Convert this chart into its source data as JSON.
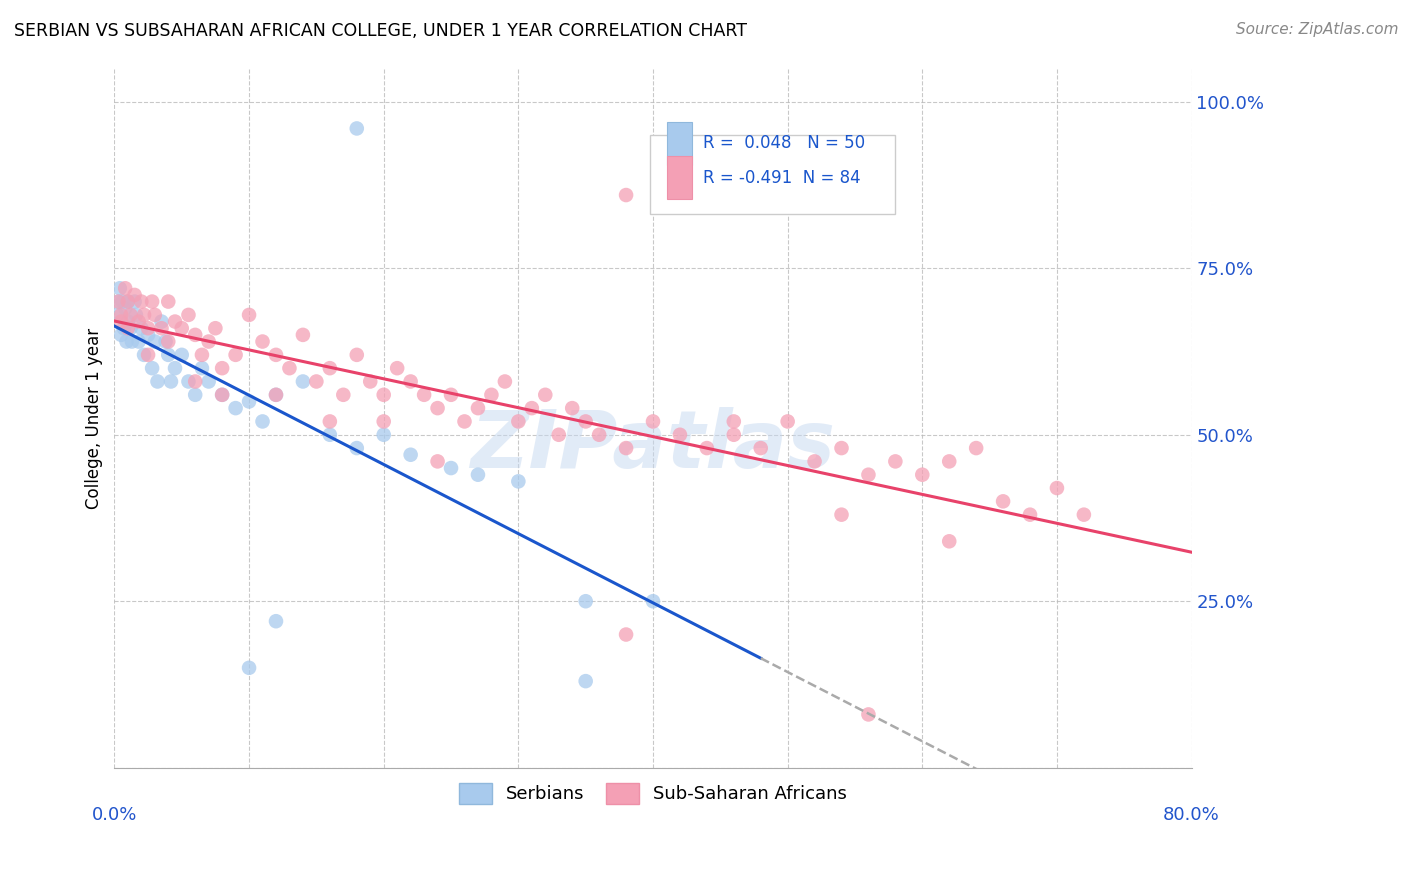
{
  "title": "SERBIAN VS SUBSAHARAN AFRICAN COLLEGE, UNDER 1 YEAR CORRELATION CHART",
  "source": "Source: ZipAtlas.com",
  "ylabel": "College, Under 1 year",
  "xlim": [
    0.0,
    0.8
  ],
  "ylim": [
    0.0,
    1.05
  ],
  "color_serbian": "#A8CAED",
  "color_ssa": "#F4A0B5",
  "color_trend_serbian": "#1A56CC",
  "color_trend_ssa": "#E8426A",
  "color_dash": "#AAAAAA",
  "watermark_color": "#C5D8F0",
  "watermark_alpha": 0.5,
  "serbian_x": [
    0.002,
    0.003,
    0.004,
    0.005,
    0.006,
    0.007,
    0.008,
    0.009,
    0.01,
    0.01,
    0.012,
    0.013,
    0.015,
    0.016,
    0.018,
    0.02,
    0.022,
    0.025,
    0.028,
    0.03,
    0.032,
    0.035,
    0.038,
    0.04,
    0.042,
    0.045,
    0.05,
    0.055,
    0.06,
    0.065,
    0.07,
    0.08,
    0.09,
    0.1,
    0.11,
    0.12,
    0.14,
    0.16,
    0.18,
    0.2,
    0.22,
    0.25,
    0.27,
    0.3,
    0.35,
    0.4,
    0.18,
    0.12,
    0.1,
    0.35
  ],
  "serbian_y": [
    0.68,
    0.7,
    0.72,
    0.65,
    0.7,
    0.66,
    0.69,
    0.64,
    0.67,
    0.7,
    0.66,
    0.64,
    0.7,
    0.68,
    0.64,
    0.66,
    0.62,
    0.65,
    0.6,
    0.64,
    0.58,
    0.67,
    0.64,
    0.62,
    0.58,
    0.6,
    0.62,
    0.58,
    0.56,
    0.6,
    0.58,
    0.56,
    0.54,
    0.55,
    0.52,
    0.56,
    0.58,
    0.5,
    0.48,
    0.5,
    0.47,
    0.45,
    0.44,
    0.43,
    0.25,
    0.25,
    0.96,
    0.22,
    0.15,
    0.13
  ],
  "ssa_x": [
    0.003,
    0.005,
    0.008,
    0.01,
    0.012,
    0.015,
    0.018,
    0.02,
    0.022,
    0.025,
    0.028,
    0.03,
    0.035,
    0.04,
    0.045,
    0.05,
    0.055,
    0.06,
    0.065,
    0.07,
    0.075,
    0.08,
    0.09,
    0.1,
    0.11,
    0.12,
    0.13,
    0.14,
    0.15,
    0.16,
    0.17,
    0.18,
    0.19,
    0.2,
    0.21,
    0.22,
    0.23,
    0.24,
    0.25,
    0.26,
    0.27,
    0.28,
    0.29,
    0.3,
    0.31,
    0.32,
    0.33,
    0.34,
    0.35,
    0.36,
    0.38,
    0.4,
    0.42,
    0.44,
    0.46,
    0.48,
    0.5,
    0.52,
    0.54,
    0.56,
    0.58,
    0.6,
    0.62,
    0.64,
    0.66,
    0.68,
    0.7,
    0.72,
    0.005,
    0.01,
    0.025,
    0.04,
    0.06,
    0.08,
    0.12,
    0.16,
    0.2,
    0.24,
    0.38,
    0.46,
    0.54,
    0.62,
    0.38,
    0.56
  ],
  "ssa_y": [
    0.7,
    0.68,
    0.72,
    0.7,
    0.68,
    0.71,
    0.67,
    0.7,
    0.68,
    0.66,
    0.7,
    0.68,
    0.66,
    0.7,
    0.67,
    0.66,
    0.68,
    0.65,
    0.62,
    0.64,
    0.66,
    0.6,
    0.62,
    0.68,
    0.64,
    0.62,
    0.6,
    0.65,
    0.58,
    0.6,
    0.56,
    0.62,
    0.58,
    0.56,
    0.6,
    0.58,
    0.56,
    0.54,
    0.56,
    0.52,
    0.54,
    0.56,
    0.58,
    0.52,
    0.54,
    0.56,
    0.5,
    0.54,
    0.52,
    0.5,
    0.48,
    0.52,
    0.5,
    0.48,
    0.5,
    0.48,
    0.52,
    0.46,
    0.48,
    0.44,
    0.46,
    0.44,
    0.46,
    0.48,
    0.4,
    0.38,
    0.42,
    0.38,
    0.67,
    0.66,
    0.62,
    0.64,
    0.58,
    0.56,
    0.56,
    0.52,
    0.52,
    0.46,
    0.86,
    0.52,
    0.38,
    0.34,
    0.2,
    0.08
  ]
}
